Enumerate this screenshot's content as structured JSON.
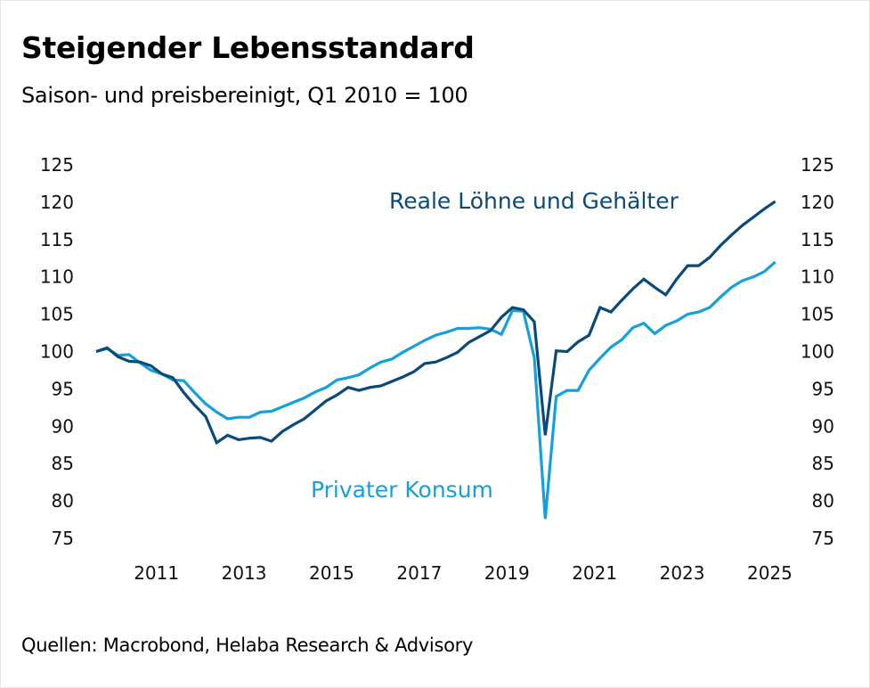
{
  "header": {
    "title": "Steigender Lebensstandard",
    "subtitle": "Saison- und preisbereinigt, Q1 2010 = 100"
  },
  "footer": {
    "source": "Quellen: Macrobond, Helaba Research & Advisory"
  },
  "colors": {
    "wages": "#0a4a78",
    "consumption": "#14a0dc"
  },
  "chart_data": {
    "type": "line",
    "title": "Steigender Lebensstandard",
    "subtitle": "Saison- und preisbereinigt, Q1 2010 = 100",
    "xlabel": "",
    "ylabel": "",
    "x_start": "Q1 2010",
    "x_frequency": "quarterly",
    "x_end": "Q3 2025",
    "ylim": [
      75,
      125
    ],
    "yticks": [
      "125",
      "120",
      "115",
      "110",
      "105",
      "100",
      "95",
      "90",
      "85",
      "80",
      "75"
    ],
    "ytick_values": [
      125,
      120,
      115,
      110,
      105,
      100,
      95,
      90,
      85,
      80,
      75
    ],
    "xticks": [
      "2011",
      "2013",
      "2015",
      "2017",
      "2019",
      "2021",
      "2023",
      "2025"
    ],
    "dual_y_axis": true,
    "grid": false,
    "legend": "inline labels",
    "series": [
      {
        "name": "Reale Löhne und Gehälter",
        "color": "#0a4a78",
        "values": [
          100,
          100.5,
          99.3,
          98.7,
          98.6,
          98.1,
          97.0,
          96.5,
          94.5,
          92.8,
          91.3,
          87.8,
          88.8,
          88.2,
          88.4,
          88.5,
          88.0,
          89.3,
          90.2,
          91.0,
          92.2,
          93.4,
          94.2,
          95.2,
          94.8,
          95.2,
          95.4,
          96.0,
          96.6,
          97.3,
          98.4,
          98.6,
          99.2,
          99.9,
          101.2,
          102.0,
          102.8,
          104.6,
          105.9,
          105.6,
          104.0,
          88.8,
          100.1,
          100.0,
          101.3,
          102.2,
          105.9,
          105.3,
          106.9,
          108.4,
          109.7,
          108.6,
          107.6,
          109.7,
          111.5,
          111.5,
          112.6,
          114.2,
          115.6,
          116.9,
          118.0,
          119.1,
          120.1
        ]
      },
      {
        "name": "Privater Konsum",
        "color": "#14a0dc",
        "values": [
          100,
          100.4,
          99.5,
          99.6,
          98.5,
          97.5,
          97.0,
          96.2,
          96.1,
          94.5,
          93.0,
          91.9,
          91.0,
          91.2,
          91.2,
          91.9,
          92.0,
          92.6,
          93.2,
          93.8,
          94.6,
          95.2,
          96.2,
          96.5,
          96.9,
          97.8,
          98.6,
          99.0,
          99.9,
          100.7,
          101.5,
          102.2,
          102.6,
          103.1,
          103.1,
          103.2,
          103.0,
          102.3,
          105.5,
          105.4,
          99.2,
          77.6,
          94.0,
          94.8,
          94.8,
          97.5,
          99.1,
          100.6,
          101.6,
          103.2,
          103.8,
          102.4,
          103.5,
          104.1,
          105.0,
          105.3,
          105.9,
          107.3,
          108.6,
          109.5,
          110.0,
          110.7,
          112.0
        ]
      }
    ]
  }
}
